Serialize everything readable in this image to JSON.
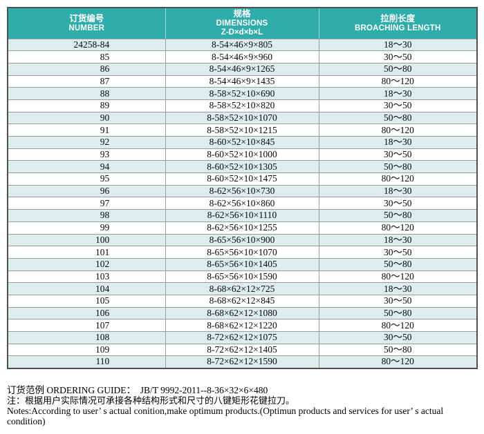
{
  "colors": {
    "header_bg": "#2fadaa",
    "stripe": "#dcedeb",
    "grid": "#939e9d",
    "outer_border": "#4f4f4f"
  },
  "table": {
    "columns": [
      {
        "zh": "订货编号",
        "en": "NUMBER"
      },
      {
        "zh": "规格",
        "en": "DIMENSIONS",
        "formula": "Z-D×d×b×L"
      },
      {
        "zh": "拉削长度",
        "en": "BROACHING LENGTH"
      }
    ],
    "rows": [
      [
        "24258-84",
        "8-54×46×9×805",
        "18～30"
      ],
      [
        "85",
        "8-54×46×9×960",
        "30～50"
      ],
      [
        "86",
        "8-54×46×9×1265",
        "50～80"
      ],
      [
        "87",
        "8-54×46×9×1435",
        "80～120"
      ],
      [
        "88",
        "8-58×52×10×690",
        "18～30"
      ],
      [
        "89",
        "8-58×52×10×820",
        "30～50"
      ],
      [
        "90",
        "8-58×52×10×1070",
        "50～80"
      ],
      [
        "91",
        "8-58×52×10×1215",
        "80～120"
      ],
      [
        "92",
        "8-60×52×10×845",
        "18～30"
      ],
      [
        "93",
        "8-60×52×10×1000",
        "30～50"
      ],
      [
        "94",
        "8-60×52×10×1305",
        "50～80"
      ],
      [
        "95",
        "8-60×52×10×1475",
        "80～120"
      ],
      [
        "96",
        "8-62×56×10×730",
        "18～30"
      ],
      [
        "97",
        "8-62×56×10×860",
        "30～50"
      ],
      [
        "98",
        "8-62×56×10×1110",
        "50～80"
      ],
      [
        "99",
        "8-62×56×10×1255",
        "80～120"
      ],
      [
        "100",
        "8-65×56×10×900",
        "18～30"
      ],
      [
        "101",
        "8-65×56×10×1070",
        "30～50"
      ],
      [
        "102",
        "8-65×56×10×1405",
        "50～80"
      ],
      [
        "103",
        "8-65×56×10×1590",
        "80～120"
      ],
      [
        "104",
        "8-68×62×12×725",
        "18～30"
      ],
      [
        "105",
        "8-68×62×12×845",
        "30～50"
      ],
      [
        "106",
        "8-68×62×12×1080",
        "50～80"
      ],
      [
        "107",
        "8-68×62×12×1220",
        "80～120"
      ],
      [
        "108",
        "8-72×62×12×1075",
        "30～50"
      ],
      [
        "109",
        "8-72×62×12×1405",
        "50～80"
      ],
      [
        "110",
        "8-72×62×12×1590",
        "80～120"
      ]
    ]
  },
  "footer": {
    "ordering_guide": "订货范例 ORDERING GUIDE：  JB/T 9992-2011--8-36×32×6×480",
    "note_zh": "注：根据用户实际情况可承接各种结构形式和尺寸的八键矩形花键拉刀。",
    "note_en": "Notes:According to user’ s actual conition,make optimum products.(Optimun products and services for user’ s actual condition)"
  }
}
